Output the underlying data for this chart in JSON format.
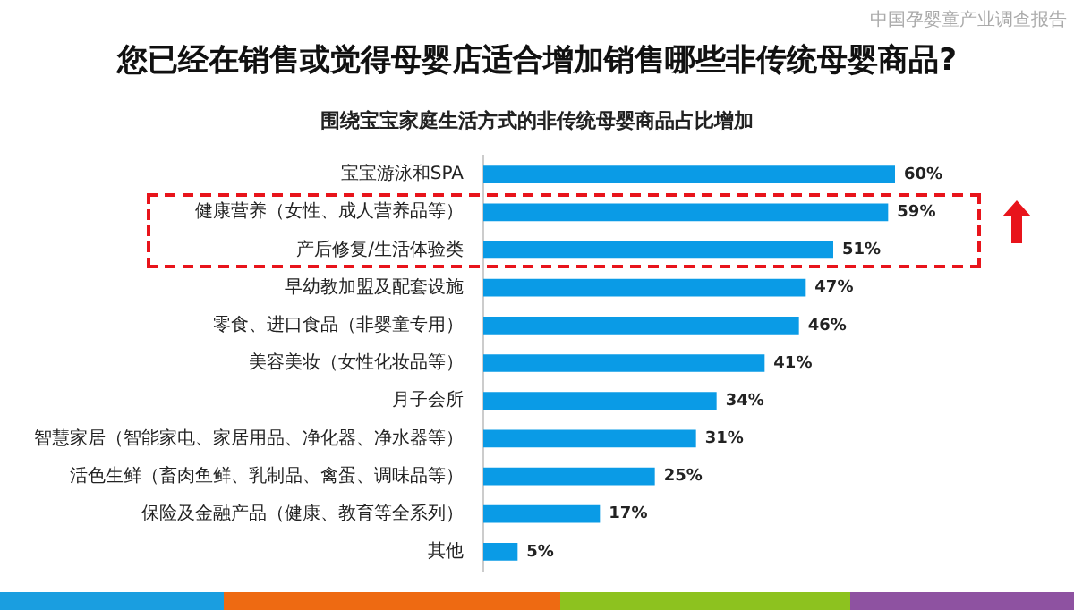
{
  "chart_data": {
    "type": "bar",
    "orientation": "horizontal",
    "tick_labels": "y",
    "title": "您已经在销售或觉得母婴店适合增加销售哪些非传统母婴商品?",
    "subtitle": "围绕宝宝家庭生活方式的非传统母婴商品占比增加",
    "annotations": [
      "中国孕婴童产业调查报告"
    ],
    "categories": [
      "宝宝游泳和SPA",
      "健康营养（女性、成人营养品等）",
      "产后修复/生活体验类",
      "早幼教加盟及配套设施",
      "零食、进口食品（非婴童专用）",
      "美容美妆（女性化妆品等）",
      "月子会所",
      "智慧家居（智能家电、家居用品、净化器、净水器等）",
      "活色生鲜（畜肉鱼鲜、乳制品、禽蛋、调味品等）",
      "保险及金融产品（健康、教育等全系列）",
      "其他"
    ],
    "values": [
      60,
      59,
      51,
      47,
      46,
      41,
      34,
      31,
      25,
      17,
      5
    ],
    "value_labels": [
      "60%",
      "59%",
      "51%",
      "47%",
      "46%",
      "41%",
      "34%",
      "31%",
      "25%",
      "17%",
      "5%"
    ],
    "color": "#0a9be6",
    "legend": false
  }
}
